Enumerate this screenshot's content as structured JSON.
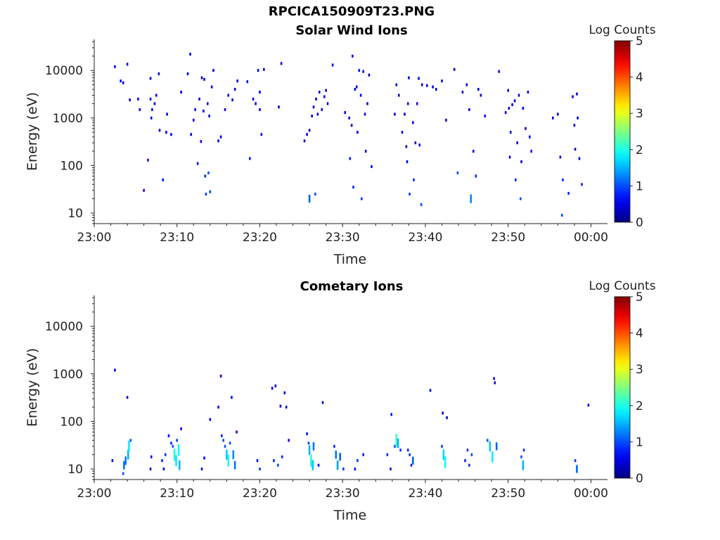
{
  "figure": {
    "title": "RPCICA150909T23.PNG"
  },
  "colorbar": {
    "label": "Log Counts",
    "ticks": [
      0,
      1,
      2,
      3,
      4,
      5
    ],
    "colormap": "jet",
    "range": [
      0,
      5
    ]
  },
  "chart_data": [
    {
      "type": "heatmap",
      "title": "Solar Wind Ions",
      "xlabel": "Time",
      "ylabel": "Energy (eV)",
      "xticks": [
        "23:00",
        "23:10",
        "23:20",
        "23:30",
        "23:40",
        "23:50",
        "00:00"
      ],
      "xlim_minutes": [
        0,
        62
      ],
      "yscale": "log",
      "ylim": [
        6,
        45000
      ],
      "yticks": [
        10,
        100,
        1000,
        10000
      ],
      "grid": false,
      "cells": [
        [
          2.5,
          12000,
          0.5
        ],
        [
          3.2,
          6000,
          0.6
        ],
        [
          3.5,
          5500,
          0.5
        ],
        [
          4,
          13500,
          0.5
        ],
        [
          4.3,
          2400,
          0.5
        ],
        [
          5.3,
          2500,
          0.6
        ],
        [
          5.5,
          1500,
          0.5
        ],
        [
          6,
          30,
          0.6
        ],
        [
          6.5,
          130,
          0.7
        ],
        [
          6.8,
          6800,
          0.5
        ],
        [
          6.8,
          2500,
          0.5
        ],
        [
          6.9,
          1000,
          0.6
        ],
        [
          7,
          1500,
          0.5
        ],
        [
          7.3,
          2000,
          0.5
        ],
        [
          7.5,
          3000,
          0.5
        ],
        [
          7.8,
          8500,
          0.6
        ],
        [
          7.9,
          550,
          0.5
        ],
        [
          8.3,
          50,
          0.7
        ],
        [
          8.7,
          500,
          0.5
        ],
        [
          8.8,
          1200,
          0.5
        ],
        [
          9.3,
          450,
          0.5
        ],
        [
          10.5,
          3500,
          0.5
        ],
        [
          11.3,
          8500,
          0.6
        ],
        [
          11.6,
          22000,
          0.5
        ],
        [
          11.7,
          450,
          0.5
        ],
        [
          12,
          900,
          0.5
        ],
        [
          12.2,
          1500,
          0.6
        ],
        [
          12.5,
          110,
          0.7
        ],
        [
          12.7,
          2500,
          0.5
        ],
        [
          12.9,
          320,
          0.5
        ],
        [
          13,
          7000,
          0.5
        ],
        [
          13.2,
          1400,
          0.5
        ],
        [
          13.3,
          6500,
          0.5
        ],
        [
          13.4,
          60,
          0.8
        ],
        [
          13.5,
          25,
          0.9
        ],
        [
          13.7,
          2000,
          0.5
        ],
        [
          13.8,
          70,
          1.0
        ],
        [
          13.9,
          1100,
          0.5
        ],
        [
          14,
          28,
          0.9
        ],
        [
          14.2,
          4500,
          0.5
        ],
        [
          14.4,
          10000,
          0.5
        ],
        [
          15,
          330,
          0.5
        ],
        [
          15.3,
          400,
          0.5
        ],
        [
          15.8,
          1500,
          0.5
        ],
        [
          16.2,
          3000,
          0.5
        ],
        [
          16.7,
          2400,
          0.5
        ],
        [
          17,
          4000,
          0.5
        ],
        [
          17.3,
          6000,
          0.5
        ],
        [
          18.5,
          5800,
          0.5
        ],
        [
          18.8,
          140,
          0.7
        ],
        [
          19.2,
          2500,
          0.5
        ],
        [
          19.5,
          2000,
          0.5
        ],
        [
          19.8,
          10000,
          0.5
        ],
        [
          20,
          1500,
          0.6
        ],
        [
          20,
          3500,
          0.6
        ],
        [
          20.2,
          450,
          0.5
        ],
        [
          20.5,
          10500,
          0.5
        ],
        [
          22.3,
          1700,
          0.6
        ],
        [
          22.6,
          14000,
          0.5
        ],
        [
          25.4,
          330,
          0.5
        ],
        [
          25.7,
          450,
          0.6
        ],
        [
          26,
          550,
          0.5
        ],
        [
          26,
          20,
          1.1
        ],
        [
          26.3,
          1100,
          0.5
        ],
        [
          26.5,
          1700,
          0.5
        ],
        [
          26.7,
          25,
          1.0
        ],
        [
          26.8,
          2500,
          0.5
        ],
        [
          27,
          1200,
          0.5
        ],
        [
          27.2,
          3500,
          0.5
        ],
        [
          27.5,
          1500,
          0.5
        ],
        [
          27.8,
          2800,
          0.5
        ],
        [
          28,
          3800,
          0.5
        ],
        [
          28.2,
          2000,
          0.5
        ],
        [
          28.8,
          13000,
          0.5
        ],
        [
          30.3,
          1300,
          0.5
        ],
        [
          30.8,
          1000,
          0.6
        ],
        [
          30.9,
          140,
          0.7
        ],
        [
          31.1,
          700,
          0.5
        ],
        [
          31.2,
          20000,
          0.5
        ],
        [
          31.3,
          35,
          0.8
        ],
        [
          31.5,
          4000,
          0.5
        ],
        [
          31.7,
          4500,
          0.5
        ],
        [
          31.8,
          500,
          0.5
        ],
        [
          32,
          10000,
          0.6
        ],
        [
          32.2,
          3000,
          0.5
        ],
        [
          32.3,
          20,
          0.9
        ],
        [
          32.5,
          9500,
          0.5
        ],
        [
          32.7,
          1200,
          0.5
        ],
        [
          32.8,
          200,
          0.5
        ],
        [
          33,
          2000,
          0.5
        ],
        [
          33.2,
          8000,
          0.5
        ],
        [
          33.5,
          95,
          0.6
        ],
        [
          36.3,
          1200,
          0.5
        ],
        [
          36.5,
          5000,
          0.5
        ],
        [
          36.8,
          3000,
          0.5
        ],
        [
          37.2,
          500,
          0.5
        ],
        [
          37.5,
          1200,
          0.5
        ],
        [
          37.7,
          250,
          0.5
        ],
        [
          37.8,
          120,
          0.6
        ],
        [
          37.9,
          2000,
          0.5
        ],
        [
          38,
          7000,
          0.5
        ],
        [
          38.1,
          25,
          0.9
        ],
        [
          38.5,
          800,
          0.5
        ],
        [
          38.6,
          50,
          0.8
        ],
        [
          38.8,
          300,
          0.5
        ],
        [
          39,
          2000,
          0.5
        ],
        [
          39.2,
          6800,
          0.5
        ],
        [
          39.3,
          270,
          0.5
        ],
        [
          39.5,
          15,
          1.0
        ],
        [
          39.6,
          5000,
          0.5
        ],
        [
          40.2,
          4800,
          0.5
        ],
        [
          40.9,
          4500,
          0.5
        ],
        [
          41.3,
          4000,
          0.5
        ],
        [
          42,
          6000,
          0.5
        ],
        [
          42.5,
          900,
          0.5
        ],
        [
          43.5,
          10500,
          0.5
        ],
        [
          43.9,
          70,
          1.0
        ],
        [
          44.5,
          3500,
          0.5
        ],
        [
          45,
          5000,
          0.5
        ],
        [
          45.3,
          1500,
          0.5
        ],
        [
          45.5,
          20,
          1.3
        ],
        [
          45.8,
          200,
          0.5
        ],
        [
          46.1,
          60,
          0.8
        ],
        [
          46.4,
          4000,
          0.5
        ],
        [
          46.7,
          3000,
          0.5
        ],
        [
          47.2,
          1100,
          0.5
        ],
        [
          48.9,
          9500,
          0.5
        ],
        [
          49.7,
          1300,
          0.5
        ],
        [
          50,
          3800,
          0.5
        ],
        [
          50.1,
          1600,
          0.5
        ],
        [
          50.2,
          150,
          0.5
        ],
        [
          50.3,
          500,
          0.5
        ],
        [
          50.5,
          1900,
          0.5
        ],
        [
          50.8,
          2300,
          0.5
        ],
        [
          50.9,
          50,
          0.8
        ],
        [
          51.1,
          300,
          0.5
        ],
        [
          51.3,
          3000,
          0.5
        ],
        [
          51.5,
          20,
          1.0
        ],
        [
          51.6,
          120,
          0.5
        ],
        [
          51.8,
          1600,
          0.5
        ],
        [
          52.1,
          600,
          0.5
        ],
        [
          52.4,
          3500,
          0.5
        ],
        [
          52.6,
          400,
          0.5
        ],
        [
          52.8,
          200,
          0.5
        ],
        [
          55.4,
          1000,
          0.5
        ],
        [
          56,
          1200,
          0.5
        ],
        [
          56.3,
          150,
          0.5
        ],
        [
          56.5,
          9,
          1.0
        ],
        [
          56.6,
          50,
          0.8
        ],
        [
          57.3,
          26,
          0.8
        ],
        [
          57.8,
          2800,
          0.5
        ],
        [
          58,
          700,
          0.5
        ],
        [
          58.1,
          220,
          0.5
        ],
        [
          58.3,
          3200,
          0.5
        ],
        [
          58.4,
          1000,
          0.5
        ],
        [
          58.6,
          140,
          0.5
        ],
        [
          58.9,
          40,
          0.8
        ]
      ]
    },
    {
      "type": "heatmap",
      "title": "Cometary Ions",
      "xlabel": "Time",
      "ylabel": "Energy (eV)",
      "xticks": [
        "23:00",
        "23:10",
        "23:20",
        "23:30",
        "23:40",
        "23:50",
        "00:00"
      ],
      "xlim_minutes": [
        0,
        62
      ],
      "yscale": "log",
      "ylim": [
        6,
        45000
      ],
      "yticks": [
        10,
        100,
        1000,
        10000
      ],
      "grid": false,
      "cells": [
        [
          2.2,
          15,
          0.5
        ],
        [
          2.5,
          1200,
          0.5
        ],
        [
          3.5,
          8,
          1.0
        ],
        [
          3.6,
          12,
          1.2
        ],
        [
          3.8,
          15,
          1.2
        ],
        [
          4,
          320,
          0.6
        ],
        [
          4.1,
          20,
          1.5
        ],
        [
          4.2,
          30,
          1.8
        ],
        [
          4.4,
          40,
          1.0
        ],
        [
          6.8,
          10,
          0.6
        ],
        [
          6.9,
          18,
          0.6
        ],
        [
          8.2,
          15,
          0.8
        ],
        [
          8.4,
          10,
          0.6
        ],
        [
          8.6,
          20,
          0.8
        ],
        [
          9,
          50,
          0.6
        ],
        [
          9.3,
          35,
          0.8
        ],
        [
          9.5,
          30,
          1.0
        ],
        [
          9.7,
          20,
          2.0
        ],
        [
          9.9,
          15,
          1.8
        ],
        [
          10,
          40,
          0.9
        ],
        [
          10.2,
          25,
          1.9
        ],
        [
          10.3,
          12,
          1.5
        ],
        [
          10.5,
          70,
          0.6
        ],
        [
          13,
          10,
          0.7
        ],
        [
          13.3,
          17,
          0.6
        ],
        [
          14,
          110,
          0.6
        ],
        [
          15,
          200,
          0.6
        ],
        [
          15.3,
          900,
          0.6
        ],
        [
          15.4,
          50,
          0.8
        ],
        [
          15.6,
          40,
          1.0
        ],
        [
          15.8,
          30,
          1.0
        ],
        [
          16,
          20,
          1.6
        ],
        [
          16.2,
          15,
          2.0
        ],
        [
          16.4,
          35,
          1.0
        ],
        [
          16.6,
          320,
          0.6
        ],
        [
          16.8,
          20,
          1.3
        ],
        [
          17,
          12,
          1.2
        ],
        [
          17.2,
          60,
          0.6
        ],
        [
          19.7,
          15,
          0.7
        ],
        [
          20,
          10,
          0.9
        ],
        [
          21.5,
          500,
          0.5
        ],
        [
          21.7,
          15,
          0.8
        ],
        [
          21.9,
          560,
          0.6
        ],
        [
          22.2,
          12,
          1.0
        ],
        [
          22.5,
          210,
          0.5
        ],
        [
          22.7,
          18,
          0.8
        ],
        [
          23,
          400,
          0.5
        ],
        [
          23.2,
          200,
          0.5
        ],
        [
          23.5,
          40,
          0.6
        ],
        [
          25.7,
          55,
          0.7
        ],
        [
          25.9,
          35,
          1.0
        ],
        [
          26,
          25,
          1.5
        ],
        [
          26.2,
          15,
          2.0
        ],
        [
          26.4,
          12,
          1.6
        ],
        [
          26.5,
          30,
          1.2
        ],
        [
          27.1,
          12,
          0.7
        ],
        [
          27.6,
          250,
          0.5
        ],
        [
          29,
          30,
          0.8
        ],
        [
          29.2,
          20,
          1.2
        ],
        [
          29.4,
          12,
          1.4
        ],
        [
          29.7,
          18,
          1.1
        ],
        [
          30.1,
          10,
          0.9
        ],
        [
          31.5,
          10,
          0.7
        ],
        [
          31.8,
          15,
          0.9
        ],
        [
          32.5,
          20,
          0.7
        ],
        [
          35.4,
          20,
          0.8
        ],
        [
          35.8,
          10,
          0.7
        ],
        [
          35.9,
          140,
          0.6
        ],
        [
          36.3,
          30,
          1.0
        ],
        [
          36.5,
          40,
          2.2
        ],
        [
          36.7,
          35,
          1.5
        ],
        [
          37,
          25,
          0.9
        ],
        [
          37.9,
          25,
          0.8
        ],
        [
          38.1,
          20,
          0.9
        ],
        [
          38.3,
          12,
          0.8
        ],
        [
          38.5,
          15,
          1.1
        ],
        [
          40.6,
          450,
          0.5
        ],
        [
          42,
          30,
          0.9
        ],
        [
          42.2,
          20,
          1.7
        ],
        [
          42.4,
          14,
          1.9
        ],
        [
          42.6,
          120,
          0.5
        ],
        [
          42.1,
          150,
          0.5
        ],
        [
          44.8,
          15,
          0.8
        ],
        [
          45.1,
          25,
          0.9
        ],
        [
          45.3,
          12,
          0.8
        ],
        [
          45.6,
          20,
          1.0
        ],
        [
          47.5,
          40,
          1.0
        ],
        [
          47.8,
          30,
          1.6
        ],
        [
          48.1,
          18,
          1.8
        ],
        [
          48.3,
          800,
          0.6
        ],
        [
          48.4,
          650,
          0.5
        ],
        [
          48.6,
          30,
          1.1
        ],
        [
          51.6,
          18,
          1.0
        ],
        [
          51.8,
          12,
          1.5
        ],
        [
          51.9,
          25,
          0.9
        ],
        [
          58.1,
          15,
          0.9
        ],
        [
          58.3,
          10,
          1.1
        ],
        [
          59.7,
          220,
          0.5
        ]
      ]
    }
  ]
}
